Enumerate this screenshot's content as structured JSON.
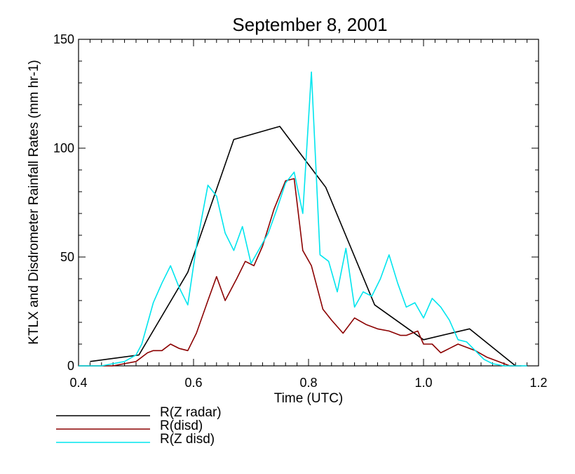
{
  "chart_data": {
    "type": "line",
    "title": "September 8, 2001",
    "xlabel": "Time (UTC)",
    "ylabel": "KTLX and Disdrometer Rainfall Rates (mm hr-1)",
    "xlim": [
      0.4,
      1.2
    ],
    "ylim": [
      0,
      150
    ],
    "x_ticks": [
      0.4,
      0.6,
      0.8,
      1.0,
      1.2
    ],
    "x_tick_labels": [
      "0.4",
      "0.6",
      "0.8",
      "1.0",
      "1.2"
    ],
    "y_ticks": [
      0,
      50,
      100,
      150
    ],
    "y_tick_labels": [
      "0",
      "50",
      "100",
      "150"
    ],
    "grid": false,
    "legend_position": "bottom-left",
    "series": [
      {
        "name": "R(Z radar)",
        "color": "#000000",
        "points": [
          [
            0.42,
            2
          ],
          [
            0.505,
            5
          ],
          [
            0.59,
            43
          ],
          [
            0.67,
            104
          ],
          [
            0.75,
            110
          ],
          [
            0.83,
            82
          ],
          [
            0.915,
            28
          ],
          [
            1.0,
            12
          ],
          [
            1.08,
            17
          ],
          [
            1.16,
            0
          ]
        ]
      },
      {
        "name": "R(disd)",
        "color": "#8b0000",
        "points": [
          [
            0.4,
            0
          ],
          [
            0.42,
            0
          ],
          [
            0.44,
            0
          ],
          [
            0.46,
            0
          ],
          [
            0.48,
            1
          ],
          [
            0.5,
            2
          ],
          [
            0.52,
            6
          ],
          [
            0.53,
            7
          ],
          [
            0.545,
            7
          ],
          [
            0.56,
            10
          ],
          [
            0.575,
            8
          ],
          [
            0.59,
            7
          ],
          [
            0.605,
            15
          ],
          [
            0.625,
            30
          ],
          [
            0.64,
            41
          ],
          [
            0.655,
            30
          ],
          [
            0.675,
            40
          ],
          [
            0.69,
            48
          ],
          [
            0.705,
            46
          ],
          [
            0.72,
            55
          ],
          [
            0.74,
            72
          ],
          [
            0.76,
            85
          ],
          [
            0.775,
            86
          ],
          [
            0.79,
            53
          ],
          [
            0.805,
            46
          ],
          [
            0.825,
            26
          ],
          [
            0.84,
            21
          ],
          [
            0.86,
            15
          ],
          [
            0.88,
            22
          ],
          [
            0.9,
            19
          ],
          [
            0.92,
            17
          ],
          [
            0.94,
            16
          ],
          [
            0.96,
            14
          ],
          [
            0.97,
            14
          ],
          [
            0.99,
            16
          ],
          [
            1.0,
            10
          ],
          [
            1.015,
            10
          ],
          [
            1.03,
            6
          ],
          [
            1.045,
            8
          ],
          [
            1.06,
            10
          ],
          [
            1.07,
            9
          ],
          [
            1.09,
            7
          ],
          [
            1.11,
            4
          ],
          [
            1.13,
            2
          ],
          [
            1.15,
            0
          ],
          [
            1.17,
            0
          ]
        ]
      },
      {
        "name": "R(Z disd)",
        "color": "#00e5ee",
        "points": [
          [
            0.4,
            0
          ],
          [
            0.42,
            0
          ],
          [
            0.44,
            0
          ],
          [
            0.46,
            1
          ],
          [
            0.48,
            2
          ],
          [
            0.5,
            5
          ],
          [
            0.51,
            10
          ],
          [
            0.53,
            29
          ],
          [
            0.545,
            38
          ],
          [
            0.56,
            46
          ],
          [
            0.575,
            36
          ],
          [
            0.59,
            28
          ],
          [
            0.605,
            55
          ],
          [
            0.625,
            83
          ],
          [
            0.64,
            78
          ],
          [
            0.655,
            61
          ],
          [
            0.67,
            53
          ],
          [
            0.685,
            64
          ],
          [
            0.7,
            47
          ],
          [
            0.715,
            54
          ],
          [
            0.73,
            61
          ],
          [
            0.745,
            72
          ],
          [
            0.76,
            84
          ],
          [
            0.775,
            89
          ],
          [
            0.79,
            70
          ],
          [
            0.805,
            135
          ],
          [
            0.82,
            51
          ],
          [
            0.835,
            48
          ],
          [
            0.85,
            34
          ],
          [
            0.865,
            54
          ],
          [
            0.88,
            27
          ],
          [
            0.895,
            34
          ],
          [
            0.91,
            32
          ],
          [
            0.925,
            40
          ],
          [
            0.94,
            51
          ],
          [
            0.955,
            38
          ],
          [
            0.97,
            27
          ],
          [
            0.985,
            29
          ],
          [
            1.0,
            22
          ],
          [
            1.015,
            31
          ],
          [
            1.03,
            27
          ],
          [
            1.045,
            21
          ],
          [
            1.06,
            12
          ],
          [
            1.075,
            11
          ],
          [
            1.09,
            7
          ],
          [
            1.105,
            3
          ],
          [
            1.12,
            1
          ],
          [
            1.14,
            0
          ],
          [
            1.16,
            0
          ],
          [
            1.18,
            0
          ]
        ]
      }
    ]
  }
}
